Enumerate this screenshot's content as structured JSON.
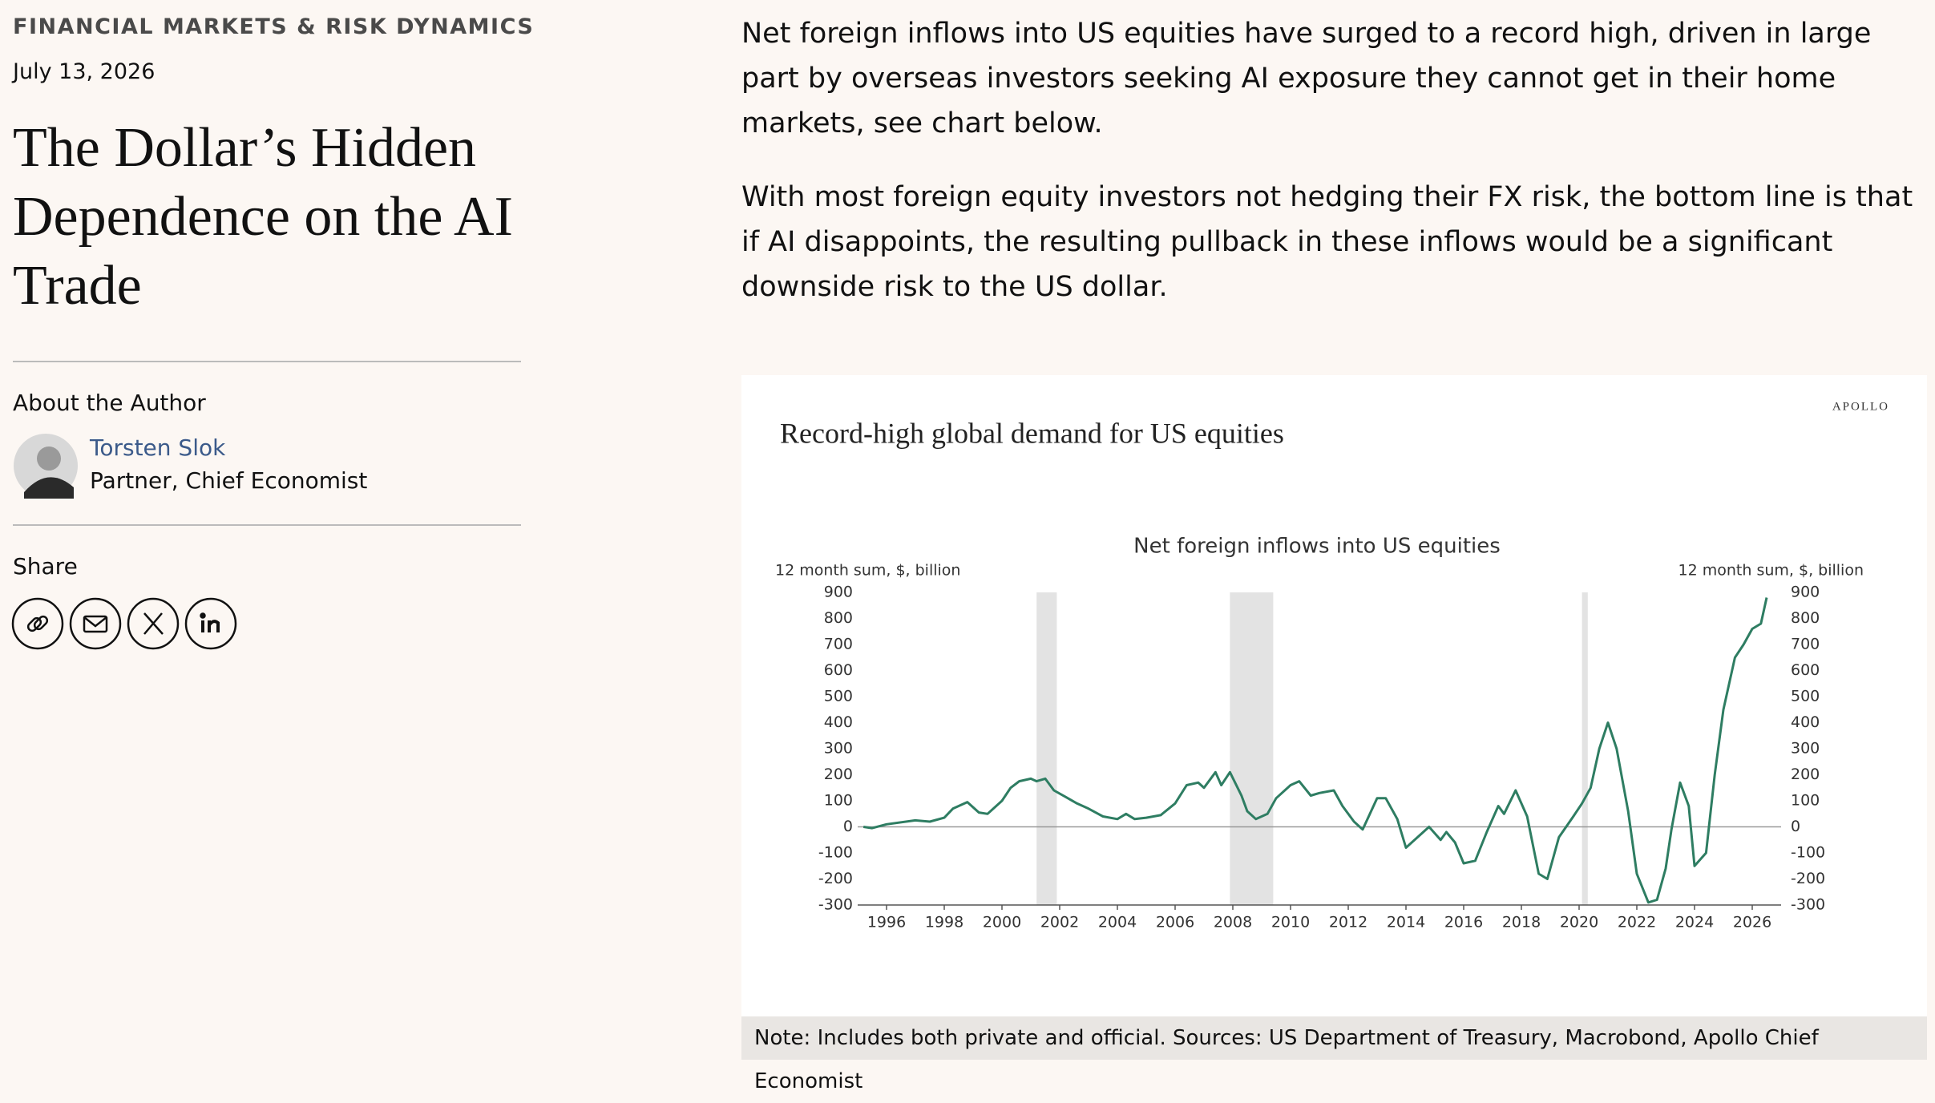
{
  "header": {
    "category": "FINANCIAL MARKETS & RISK DYNAMICS",
    "date": "July 13, 2026",
    "title": "The Dollar’s Hidden Dependence on the AI Trade"
  },
  "author": {
    "heading": "About the Author",
    "name": "Torsten Slok",
    "role": "Partner, Chief Economist"
  },
  "share": {
    "heading": "Share"
  },
  "body": {
    "paragraphs": [
      "Net foreign inflows into US equities have surged to a record high, driven in large part by overseas investors seeking AI exposure they cannot get in their home markets, see chart below.",
      "With most foreign equity investors not hedging their FX risk, the bottom line is that if AI disappoints, the resulting pullback in these inflows would be a significant downside risk to the US dollar."
    ]
  },
  "chart_data": {
    "type": "line",
    "brand": "APOLLO",
    "title": "Record-high global demand for US equities",
    "subtitle": "Net foreign inflows into US equities",
    "ylabel": "12 month sum, $, billion",
    "y2label": "12 month sum, $, billion",
    "color": "#2e7d62",
    "x": [
      1995.2,
      1995.5,
      1996,
      1997,
      1997.5,
      1998,
      1998.3,
      1998.8,
      1999.2,
      1999.5,
      2000,
      2000.3,
      2000.6,
      2001,
      2001.2,
      2001.5,
      2001.8,
      2002.2,
      2002.6,
      2003,
      2003.5,
      2004,
      2004.3,
      2004.6,
      2005,
      2005.5,
      2006,
      2006.4,
      2006.8,
      2007,
      2007.4,
      2007.6,
      2007.9,
      2008.3,
      2008.5,
      2008.8,
      2009.2,
      2009.5,
      2010,
      2010.3,
      2010.7,
      2011,
      2011.5,
      2011.8,
      2012.2,
      2012.5,
      2013,
      2013.3,
      2013.7,
      2014,
      2014.5,
      2014.8,
      2015.2,
      2015.4,
      2015.7,
      2016,
      2016.4,
      2016.8,
      2017.2,
      2017.4,
      2017.8,
      2018.2,
      2018.6,
      2018.9,
      2019.3,
      2019.8,
      2020.1,
      2020.4,
      2020.7,
      2021,
      2021.3,
      2021.7,
      2022,
      2022.4,
      2022.7,
      2023,
      2023.2,
      2023.5,
      2023.8,
      2024,
      2024.4,
      2024.7,
      2025,
      2025.4,
      2025.7,
      2026,
      2026.3,
      2026.5
    ],
    "values": [
      0,
      -5,
      10,
      25,
      20,
      35,
      70,
      95,
      55,
      50,
      100,
      150,
      175,
      185,
      175,
      185,
      140,
      115,
      90,
      70,
      40,
      30,
      50,
      30,
      35,
      45,
      90,
      160,
      170,
      150,
      210,
      160,
      210,
      120,
      60,
      30,
      50,
      110,
      160,
      175,
      120,
      130,
      140,
      80,
      20,
      -10,
      110,
      110,
      30,
      -80,
      -30,
      0,
      -50,
      -20,
      -60,
      -140,
      -130,
      -20,
      80,
      50,
      140,
      40,
      -180,
      -200,
      -40,
      40,
      90,
      150,
      300,
      400,
      300,
      60,
      -180,
      -290,
      -280,
      -160,
      -10,
      170,
      80,
      -150,
      -100,
      200,
      450,
      650,
      700,
      760,
      780,
      880
    ],
    "xlim": [
      1995,
      2027
    ],
    "xticks": [
      1996,
      1998,
      2000,
      2002,
      2004,
      2006,
      2008,
      2010,
      2012,
      2014,
      2016,
      2018,
      2020,
      2022,
      2024,
      2026
    ],
    "ylim": [
      -300,
      900
    ],
    "yticks": [
      -300,
      -200,
      -100,
      0,
      100,
      200,
      300,
      400,
      500,
      600,
      700,
      800,
      900
    ],
    "y2lim": [
      -300,
      900
    ],
    "y2ticks": [
      -300,
      -200,
      -100,
      0,
      100,
      200,
      300,
      400,
      500,
      600,
      700,
      800,
      900
    ],
    "shaded_regions": [
      [
        2001.2,
        2001.9
      ],
      [
        2007.9,
        2009.4
      ],
      [
        2020.1,
        2020.3
      ]
    ],
    "zero_line": true
  },
  "chart_note": "Note: Includes both private and official. Sources: US Department of Treasury, Macrobond, Apollo Chief Economist"
}
